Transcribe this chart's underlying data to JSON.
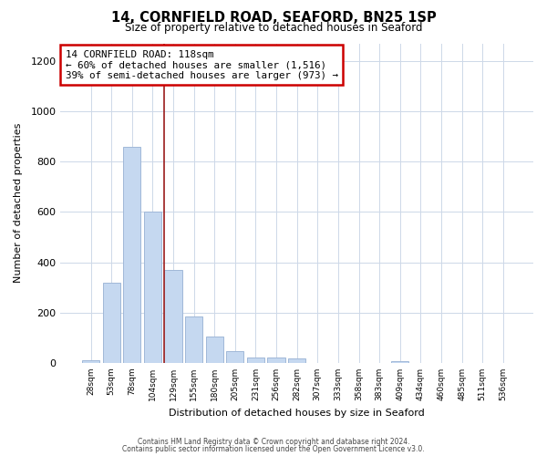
{
  "title": "14, CORNFIELD ROAD, SEAFORD, BN25 1SP",
  "subtitle": "Size of property relative to detached houses in Seaford",
  "xlabel": "Distribution of detached houses by size in Seaford",
  "ylabel": "Number of detached properties",
  "bar_labels": [
    "28sqm",
    "53sqm",
    "78sqm",
    "104sqm",
    "129sqm",
    "155sqm",
    "180sqm",
    "205sqm",
    "231sqm",
    "256sqm",
    "282sqm",
    "307sqm",
    "333sqm",
    "358sqm",
    "383sqm",
    "409sqm",
    "434sqm",
    "460sqm",
    "485sqm",
    "511sqm",
    "536sqm"
  ],
  "bar_values": [
    12,
    320,
    860,
    600,
    370,
    185,
    105,
    48,
    20,
    20,
    18,
    0,
    0,
    0,
    0,
    8,
    0,
    0,
    0,
    0,
    0
  ],
  "bar_color": "#c5d8f0",
  "bar_edgecolor": "#a0b8d8",
  "vline_position": 3.56,
  "annotation_title": "14 CORNFIELD ROAD: 118sqm",
  "annotation_line1": "← 60% of detached houses are smaller (1,516)",
  "annotation_line2": "39% of semi-detached houses are larger (973) →",
  "annotation_box_color": "#ffffff",
  "annotation_box_edgecolor": "#cc0000",
  "vline_color": "#9b1c1c",
  "ylim": [
    0,
    1270
  ],
  "yticks": [
    0,
    200,
    400,
    600,
    800,
    1000,
    1200
  ],
  "footer_line1": "Contains HM Land Registry data © Crown copyright and database right 2024.",
  "footer_line2": "Contains public sector information licensed under the Open Government Licence v3.0.",
  "background_color": "#ffffff",
  "grid_color": "#cdd8e8"
}
